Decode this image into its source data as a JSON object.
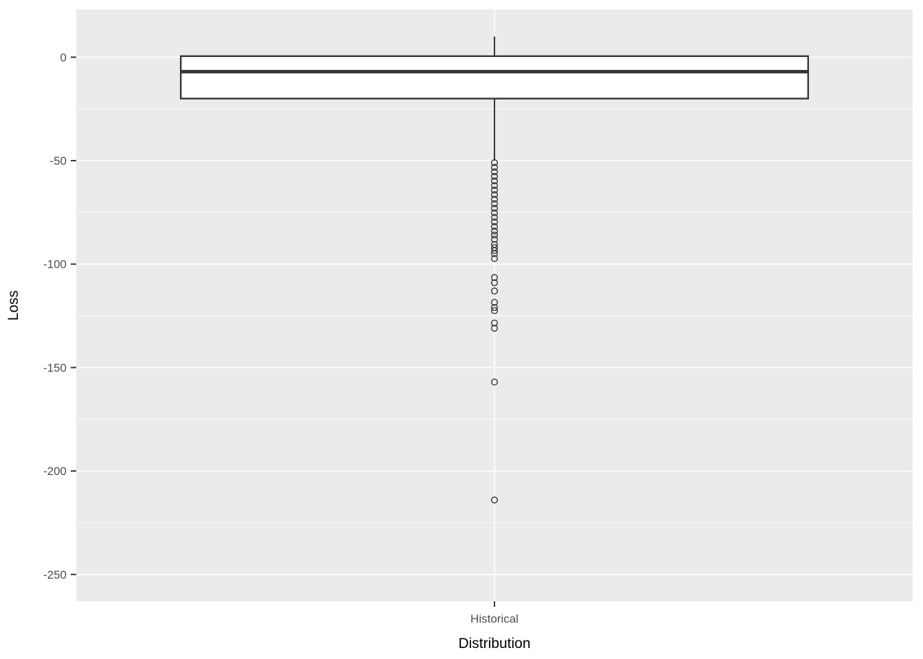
{
  "figure": {
    "background": "#FFFFFF"
  },
  "chart_data": {
    "type": "boxplot",
    "title": "",
    "xlabel": "Distribution",
    "ylabel": "Loss",
    "categories": [
      "Historical"
    ],
    "y_ticks": [
      0,
      -50,
      -100,
      -150,
      -200,
      -250
    ],
    "y_minor_ticks": [
      -25,
      -75,
      -125,
      -175,
      -225
    ],
    "ylim": [
      -263,
      23
    ],
    "grid": true,
    "legend_position": "none",
    "colors": {
      "panel_background": "#EBEBEB",
      "gridline": "#FFFFFF",
      "box_stroke": "#333333",
      "box_fill": "#FFFFFF",
      "outlier_stroke": "#333333",
      "tick_mark": "#333333",
      "axis_text": "#4D4D4D",
      "axis_title": "#000000"
    },
    "series": [
      {
        "name": "Historical",
        "whisker_high": 10,
        "upper_hinge": 0.5,
        "median": -7,
        "lower_hinge": -20,
        "whisker_low": -50,
        "outliers": [
          -51,
          -53.2,
          -55.4,
          -57.6,
          -59.8,
          -62,
          -64.2,
          -66.4,
          -68.6,
          -70.8,
          -73,
          -75.2,
          -77.4,
          -79.6,
          -81.8,
          -84,
          -86,
          -88,
          -90.5,
          -92,
          -93.5,
          -95,
          -97.3,
          -106.5,
          -109,
          -113,
          -118.5,
          -121,
          -122.5,
          -128.5,
          -131,
          -157,
          -214
        ]
      }
    ]
  }
}
